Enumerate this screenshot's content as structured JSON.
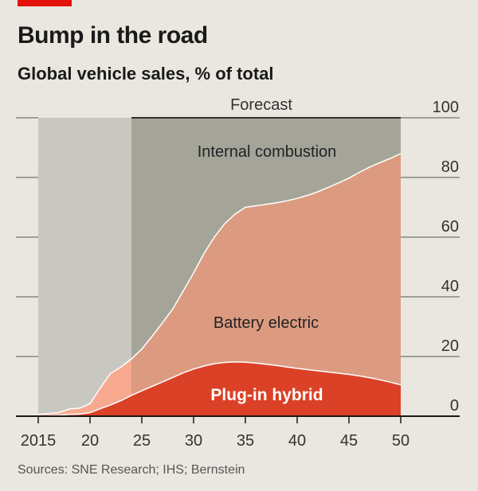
{
  "header": {
    "title": "Bump in the road",
    "subtitle": "Global vehicle sales, % of total"
  },
  "source": "Sources: SNE Research; IHS; Bernstein",
  "colors": {
    "background": "#e9e7df",
    "tag": "#e3120b",
    "past_internal_combustion": "#c8c7c1",
    "forecast_internal_combustion": "#a5a499",
    "battery_electric_past": "#f6a98f",
    "battery_electric_forecast": "#dc9b81",
    "plug_in_hybrid": "#db4127"
  },
  "chart_data": {
    "type": "area",
    "stacked": true,
    "x": [
      2015,
      2016,
      2017,
      2018,
      2019,
      2020,
      2021,
      2022,
      2023,
      2024,
      2025,
      2026,
      2027,
      2028,
      2029,
      2030,
      2031,
      2032,
      2033,
      2034,
      2035,
      2036,
      2037,
      2038,
      2039,
      2040,
      2041,
      2042,
      2043,
      2044,
      2045,
      2046,
      2047,
      2048,
      2049,
      2050
    ],
    "xticks": [
      2015,
      2020,
      2025,
      2030,
      2035,
      2040,
      2045,
      2050
    ],
    "xtick_labels": [
      "2015",
      "20",
      "25",
      "30",
      "35",
      "40",
      "45",
      "50"
    ],
    "xlim": [
      2015,
      2050
    ],
    "ylim": [
      0,
      100
    ],
    "yticks": [
      0,
      20,
      40,
      60,
      80,
      100
    ],
    "ytick_labels": [
      "0",
      "20",
      "40",
      "60",
      "80",
      "100"
    ],
    "y_axis_side": "right",
    "forecast": {
      "label": "Forecast",
      "start": 2024,
      "end": 2050
    },
    "series": [
      {
        "name": "Plug-in hybrid",
        "values": [
          0.1,
          0.2,
          0.3,
          0.6,
          0.7,
          1.2,
          2.5,
          3.8,
          5.2,
          7.0,
          8.5,
          10.0,
          11.5,
          13.0,
          14.5,
          15.8,
          16.8,
          17.6,
          18.0,
          18.2,
          18.1,
          17.8,
          17.4,
          17.0,
          16.5,
          16.0,
          15.6,
          15.2,
          14.8,
          14.4,
          14.0,
          13.5,
          12.9,
          12.2,
          11.4,
          10.5
        ]
      },
      {
        "name": "Battery electric",
        "values": [
          0.5,
          0.7,
          0.9,
          1.8,
          2.0,
          3.0,
          7.0,
          10.6,
          11.3,
          12.2,
          14.0,
          16.8,
          19.8,
          23.0,
          27.5,
          32.2,
          37.7,
          42.4,
          46.5,
          49.5,
          51.9,
          52.7,
          53.6,
          54.5,
          55.7,
          57.0,
          58.4,
          60.0,
          61.9,
          63.8,
          65.8,
          68.2,
          70.6,
          72.8,
          75.0,
          77.5
        ]
      },
      {
        "name": "Internal combustion",
        "values": [
          99.4,
          99.1,
          98.8,
          97.6,
          97.3,
          95.8,
          90.5,
          85.6,
          83.5,
          80.8,
          77.5,
          73.2,
          68.7,
          64.0,
          58.0,
          52.0,
          45.5,
          40.0,
          35.5,
          32.3,
          30.0,
          29.5,
          29.0,
          28.5,
          27.8,
          27.0,
          26.0,
          24.8,
          23.3,
          21.8,
          20.2,
          18.3,
          16.5,
          15.0,
          13.6,
          12.0
        ]
      }
    ],
    "annotations": [
      "Internal combustion",
      "Battery electric",
      "Plug-in hybrid"
    ]
  }
}
